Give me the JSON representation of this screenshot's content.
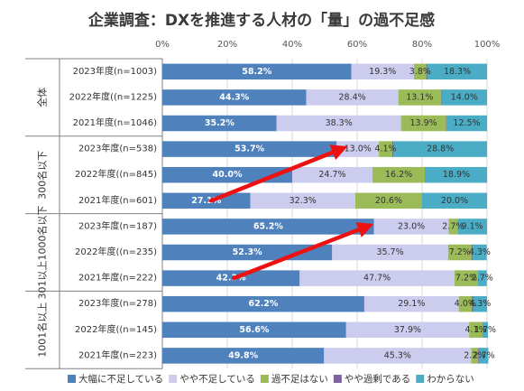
{
  "chart_data": {
    "type": "bar",
    "orientation": "horizontal",
    "stacked": true,
    "title": "企業調査：DXを推進する人材の「量」の過不足感",
    "xlim": [
      0,
      100
    ],
    "x_ticks": [
      "0%",
      "20%",
      "40%",
      "60%",
      "80%",
      "100%"
    ],
    "legend_position": "bottom",
    "groups": [
      {
        "name": "全体",
        "rows": [
          "2023年度(n=1003)",
          "2022年度((n=1225)",
          "2021年度(n=1046)"
        ]
      },
      {
        "name": "300名以下",
        "rows": [
          "2023年度(n=538)",
          "2022年度((n=845)",
          "2021年度(n=601)"
        ]
      },
      {
        "name": "301以上1000名以下",
        "rows": [
          "2023年度(n=187)",
          "2022年度((n=235)",
          "2021年度(n=222)"
        ]
      },
      {
        "name": "1001名以上",
        "rows": [
          "2023年度(n=278)",
          "2022年度((n=145)",
          "2021年度(n=223)"
        ]
      }
    ],
    "categories": [
      "2023年度(n=1003)",
      "2022年度((n=1225)",
      "2021年度(n=1046)",
      "2023年度(n=538)",
      "2022年度((n=845)",
      "2021年度(n=601)",
      "2023年度(n=187)",
      "2022年度((n=235)",
      "2021年度(n=222)",
      "2023年度(n=278)",
      "2022年度((n=145)",
      "2021年度(n=223)"
    ],
    "series": [
      {
        "name": "大幅に不足している",
        "color": "#4f81bd",
        "label_color": "#ffffff",
        "values": [
          58.2,
          44.3,
          35.2,
          53.7,
          40.0,
          27.1,
          65.2,
          52.3,
          42.3,
          62.2,
          56.6,
          49.8
        ]
      },
      {
        "name": "やや不足している",
        "color": "#ccccee",
        "label_color": "#333333",
        "values": [
          19.3,
          28.4,
          38.3,
          13.0,
          24.7,
          32.3,
          23.0,
          35.7,
          47.7,
          29.1,
          37.9,
          45.3
        ]
      },
      {
        "name": "過不足はない",
        "color": "#9bbb59",
        "label_color": "#333333",
        "values": [
          3.8,
          13.1,
          13.9,
          4.1,
          16.2,
          20.6,
          2.7,
          7.2,
          7.2,
          4.0,
          4.1,
          2.2
        ]
      },
      {
        "name": "やや過剰である",
        "color": "#8064a2",
        "label_color": "#333333",
        "values": [
          0.4,
          0.2,
          0.1,
          0.4,
          0.2,
          0.0,
          0.0,
          0.4,
          0.0,
          0.4,
          0.0,
          0.4
        ]
      },
      {
        "name": "わからない",
        "color": "#4bacc6",
        "label_color": "#333333",
        "values": [
          18.3,
          14.0,
          12.5,
          28.8,
          18.9,
          20.0,
          9.1,
          4.3,
          2.7,
          4.3,
          1.7,
          2.7
        ]
      }
    ],
    "value_labels": [
      [
        "58.2%",
        "44.3%",
        "35.2%",
        "53.7%",
        "40.0%",
        "27.1%",
        "65.2%",
        "52.3%",
        "42.3%",
        "62.2%",
        "56.6%",
        "49.8%"
      ],
      [
        "19.3%",
        "28.4%",
        "38.3%",
        "13.0%",
        "24.7%",
        "32.3%",
        "23.0%",
        "35.7%",
        "47.7%",
        "29.1%",
        "37.9%",
        "45.3%"
      ],
      [
        "3.8%",
        "13.1%",
        "13.9%",
        "4.1%",
        "16.2%",
        "20.6%",
        "2.7%",
        "7.2%",
        "7.2%",
        "4.0%",
        "4.1%",
        "2.2%"
      ],
      [
        "",
        "",
        "",
        "",
        "",
        "",
        "",
        "",
        "",
        "",
        "",
        ""
      ],
      [
        "18.3%",
        "14.0%",
        "12.5%",
        "28.8%",
        "18.9%",
        "20.0%",
        "9.1%",
        "4.3%",
        "2.7%",
        "4.3%",
        "1.7%",
        "2.7%"
      ]
    ],
    "annotations": [
      {
        "type": "arrow",
        "color": "#ee1111",
        "from": {
          "row": 5,
          "value": 15
        },
        "to": {
          "row": 3,
          "value": 55
        }
      },
      {
        "type": "arrow",
        "color": "#ee1111",
        "from": {
          "row": 8,
          "value": 22
        },
        "to": {
          "row": 6,
          "value": 63
        }
      }
    ]
  }
}
